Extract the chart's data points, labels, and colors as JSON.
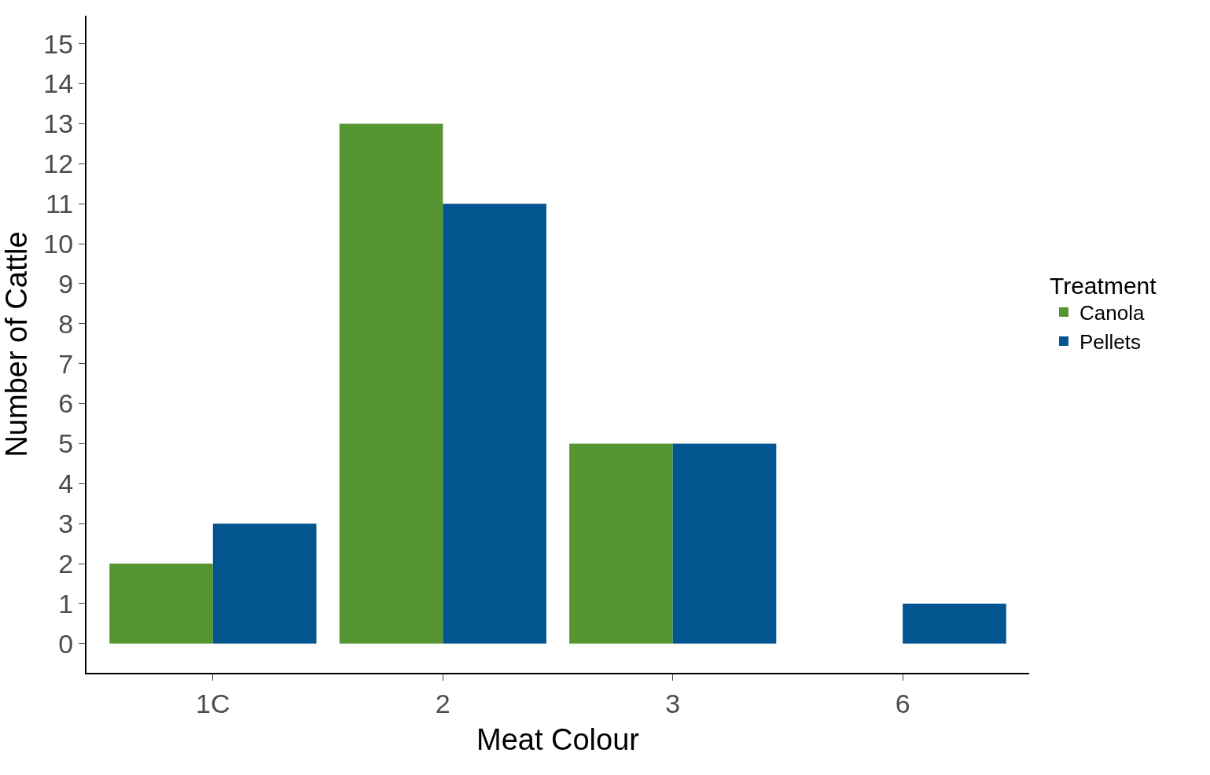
{
  "chart_data": {
    "type": "bar",
    "xlabel": "Meat Colour",
    "ylabel": "Number of Cattle",
    "legend_title": "Treatment",
    "categories": [
      "1C",
      "2",
      "3",
      "6"
    ],
    "series": [
      {
        "name": "Canola",
        "color": "#559431",
        "values": [
          2,
          13,
          5,
          null
        ]
      },
      {
        "name": "Pellets",
        "color": "#02558f",
        "values": [
          3,
          11,
          5,
          1
        ]
      }
    ],
    "ylim": [
      -0.73,
      15.7
    ],
    "yticks": [
      0,
      1,
      2,
      3,
      4,
      5,
      6,
      7,
      8,
      9,
      10,
      11,
      12,
      13,
      14,
      15
    ],
    "legend": "right"
  }
}
